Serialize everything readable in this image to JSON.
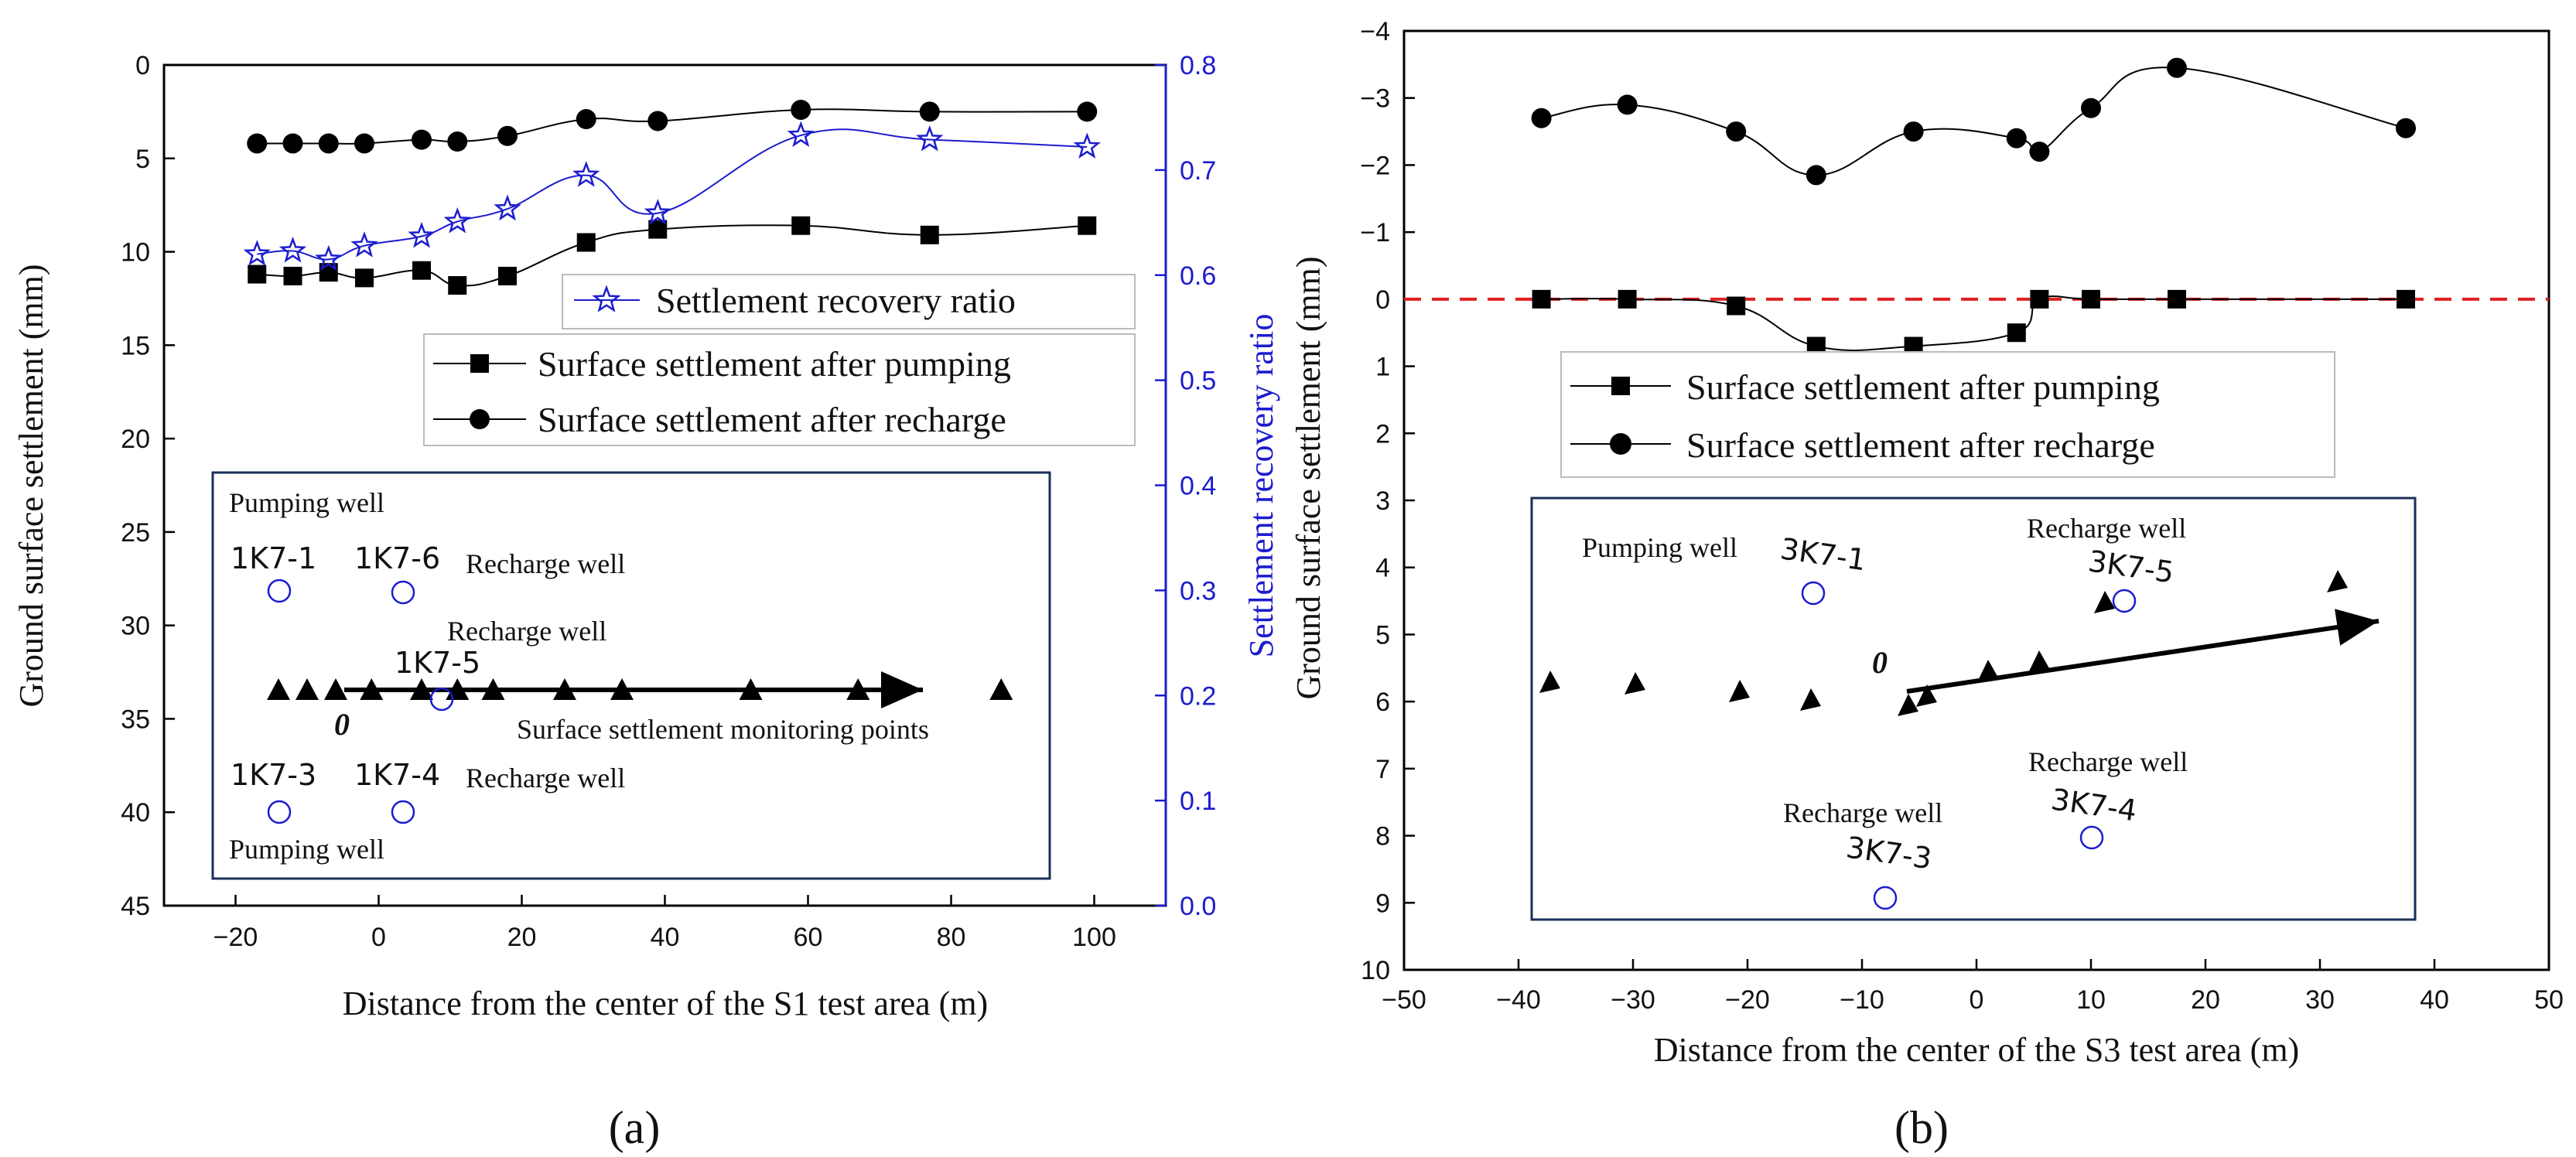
{
  "chart_data": [
    {
      "panel": "(a)",
      "type": "line",
      "xlabel": "Distance from the center of the S1 test area (m)",
      "ylabel": "Ground surface settlement (mm)",
      "y2label": "Settlement recovery ratio",
      "xlim": [
        -30,
        110
      ],
      "ylim": [
        0,
        45
      ],
      "y2lim": [
        0,
        0.8
      ],
      "y_inverted": true,
      "xticks": [
        "−20",
        "0",
        "20",
        "40",
        "60",
        "80",
        "100"
      ],
      "xtick_values": [
        -20,
        0,
        20,
        40,
        60,
        80,
        100
      ],
      "yticks": [
        "0",
        "5",
        "10",
        "15",
        "20",
        "25",
        "30",
        "35",
        "40",
        "45"
      ],
      "ytick_values": [
        0,
        5,
        10,
        15,
        20,
        25,
        30,
        35,
        40,
        45
      ],
      "y2ticks": [
        "0.0",
        "0.1",
        "0.2",
        "0.3",
        "0.4",
        "0.5",
        "0.6",
        "0.7",
        "0.8"
      ],
      "y2tick_values": [
        0,
        0.1,
        0.2,
        0.3,
        0.4,
        0.5,
        0.6,
        0.7,
        0.8
      ],
      "series": [
        {
          "name": "Surface settlement after pumping",
          "axis": "left",
          "marker": "square",
          "color": "#000000",
          "x": [
            -17,
            -12,
            -7,
            -2,
            6,
            11,
            18,
            29,
            39,
            59,
            77,
            99
          ],
          "y": [
            11.2,
            11.3,
            11.1,
            11.4,
            11.0,
            11.8,
            11.3,
            9.5,
            8.8,
            8.6,
            9.1,
            8.6
          ]
        },
        {
          "name": "Surface settlement after recharge",
          "axis": "left",
          "marker": "circle",
          "color": "#000000",
          "x": [
            -17,
            -12,
            -7,
            -2,
            6,
            11,
            18,
            29,
            39,
            59,
            77,
            99
          ],
          "y": [
            4.2,
            4.2,
            4.2,
            4.2,
            4.0,
            4.1,
            3.8,
            2.9,
            3.0,
            2.4,
            2.5,
            2.5
          ]
        },
        {
          "name": "Settlement recovery ratio",
          "axis": "right",
          "marker": "star",
          "color": "#1c1ccf",
          "x": [
            -17,
            -12,
            -7,
            -2,
            6,
            11,
            18,
            29,
            39,
            59,
            77,
            99
          ],
          "y": [
            0.62,
            0.623,
            0.615,
            0.628,
            0.637,
            0.651,
            0.663,
            0.695,
            0.659,
            0.733,
            0.729,
            0.722
          ]
        }
      ],
      "legend": [
        "Settlement recovery ratio",
        "Surface settlement after pumping",
        "Surface settlement after recharge"
      ],
      "inset": {
        "origin_label": "0",
        "monitoring_label": "Surface settlement monitoring points",
        "monitoring_x": [
          -14,
          -10,
          -6,
          -1,
          6,
          11,
          16,
          26,
          34,
          52,
          67,
          87
        ],
        "wells": [
          {
            "id": "1K7-1",
            "type": "Pumping well"
          },
          {
            "id": "1K7-6",
            "type": "Recharge well"
          },
          {
            "id": "1K7-5",
            "type": "Recharge well"
          },
          {
            "id": "1K7-3",
            "type": "Pumping well"
          },
          {
            "id": "1K7-4",
            "type": "Recharge well"
          }
        ]
      }
    },
    {
      "panel": "(b)",
      "type": "line",
      "xlabel": "Distance from the center of the S3 test area (m)",
      "ylabel": "Ground surface settlement (mm)",
      "xlim": [
        -50,
        50
      ],
      "ylim": [
        -4,
        10
      ],
      "y_inverted": true,
      "xticks": [
        "−50",
        "−40",
        "−30",
        "−20",
        "−10",
        "0",
        "10",
        "20",
        "30",
        "40",
        "50"
      ],
      "xtick_values": [
        -50,
        -40,
        -30,
        -20,
        -10,
        0,
        10,
        20,
        30,
        40,
        50
      ],
      "yticks": [
        "−4",
        "−3",
        "−2",
        "−1",
        "0",
        "1",
        "2",
        "3",
        "4",
        "5",
        "6",
        "7",
        "8",
        "9",
        "10"
      ],
      "ytick_values": [
        -4,
        -3,
        -2,
        -1,
        0,
        1,
        2,
        3,
        4,
        5,
        6,
        7,
        8,
        9,
        10
      ],
      "reference_line": {
        "y": 0,
        "style": "dashed",
        "color": "#e02020"
      },
      "series": [
        {
          "name": "Surface settlement after pumping",
          "marker": "square",
          "color": "#000000",
          "x": [
            -38,
            -30.5,
            -21,
            -14,
            -5.5,
            3.5,
            5.5,
            10,
            17.5,
            37.5
          ],
          "y": [
            0,
            0,
            0.1,
            0.7,
            0.7,
            0.5,
            0,
            0,
            0,
            0
          ]
        },
        {
          "name": "Surface settlement after recharge",
          "marker": "circle",
          "color": "#000000",
          "x": [
            -38,
            -30.5,
            -21,
            -14,
            -5.5,
            3.5,
            5.5,
            10,
            17.5,
            37.5
          ],
          "y": [
            -2.7,
            -2.9,
            -2.5,
            -1.85,
            -2.5,
            -2.4,
            -2.2,
            -2.85,
            -3.45,
            -2.55
          ]
        }
      ],
      "legend": [
        "Surface settlement after pumping",
        "Surface settlement after recharge"
      ],
      "inset": {
        "origin_label": "0",
        "wells": [
          {
            "id": "3K7-1",
            "type": "Pumping well"
          },
          {
            "id": "3K7-5",
            "type": "Recharge well"
          },
          {
            "id": "3K7-4",
            "type": "Recharge well"
          },
          {
            "id": "3K7-3",
            "type": "Recharge well"
          }
        ]
      }
    }
  ]
}
